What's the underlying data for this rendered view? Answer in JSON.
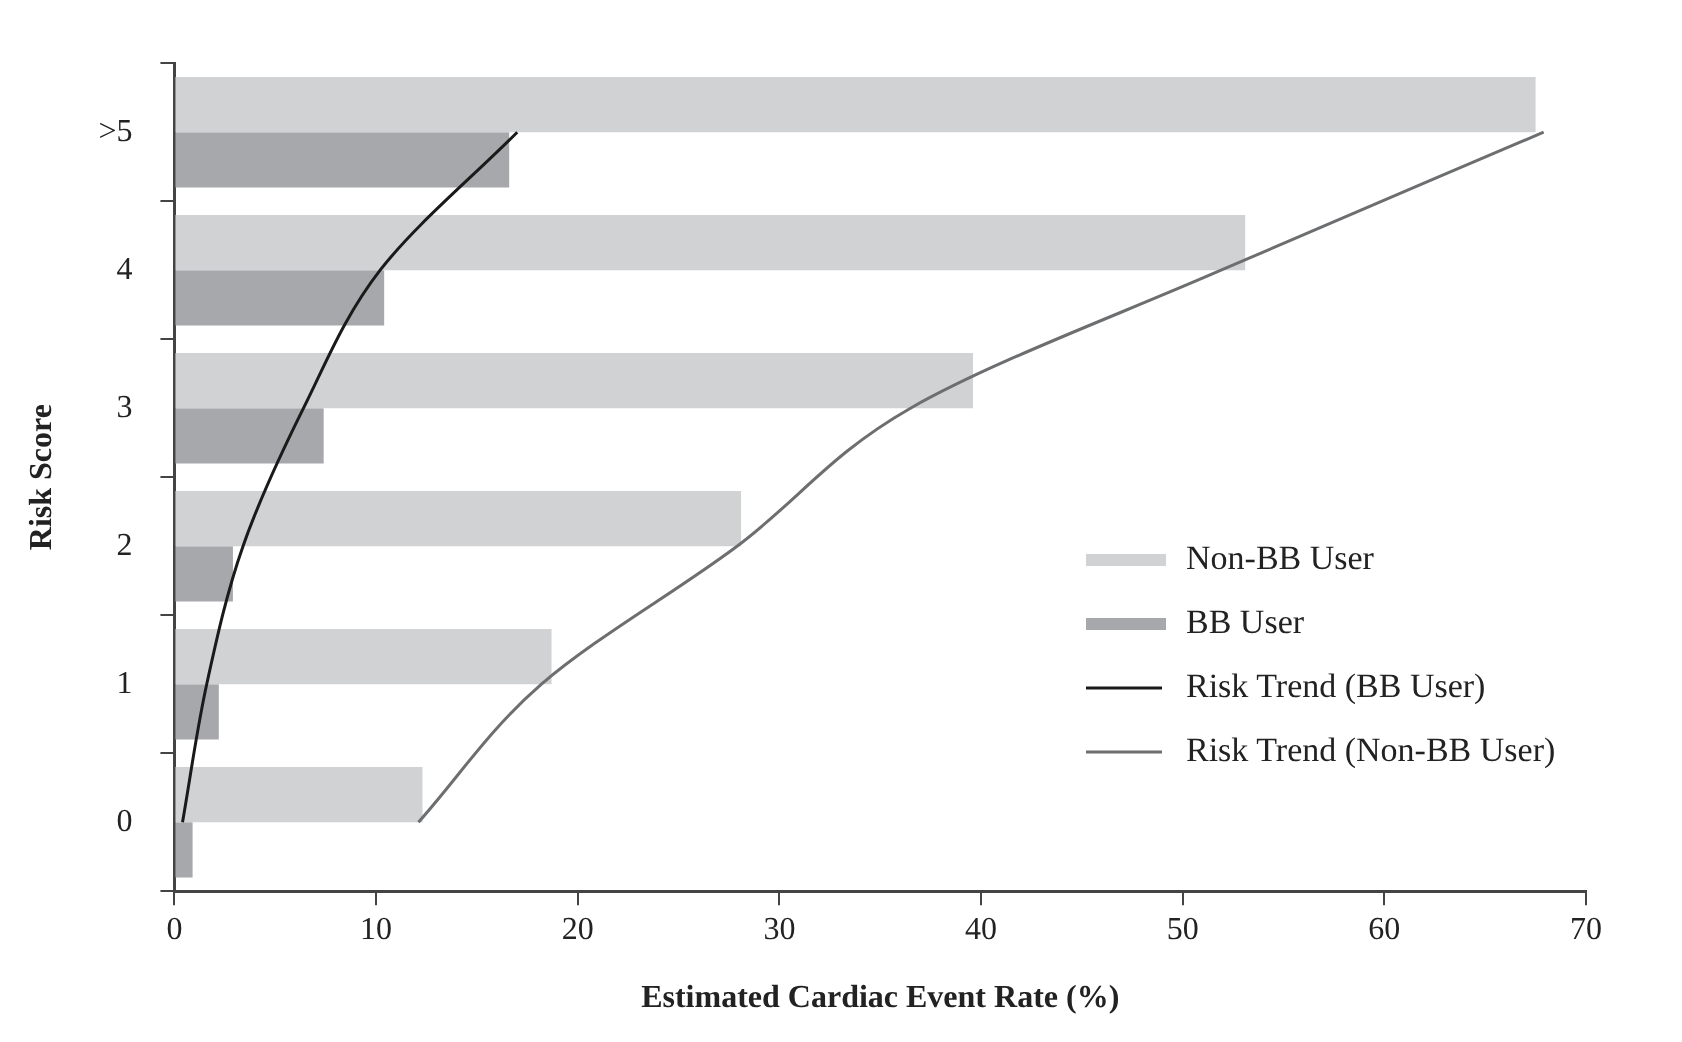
{
  "chart_data": {
    "type": "bar",
    "orientation": "horizontal",
    "xlabel": "Estimated Cardiac Event Rate (%)",
    "ylabel": "Risk Score",
    "categories": [
      ">5",
      "4",
      "3",
      "2",
      "1",
      "0"
    ],
    "series": [
      {
        "name": "Non-BB User",
        "color": "#d1d2d4",
        "values": [
          67.5,
          53.1,
          39.6,
          28.1,
          18.7,
          12.3
        ]
      },
      {
        "name": "BB User",
        "color": "#a7a8ab",
        "values": [
          16.6,
          10.4,
          7.4,
          2.9,
          2.2,
          0.9
        ]
      },
      {
        "name": "Risk Trend (BB User)",
        "type": "line",
        "color": "#1a1a1a",
        "values": [
          17.0,
          10.2,
          6.4,
          3.4,
          1.6,
          0.4
        ]
      },
      {
        "name": "Risk Trend (Non-BB User)",
        "type": "line",
        "color": "#6d6e70",
        "values": [
          67.9,
          51.9,
          36.5,
          27.9,
          18.2,
          12.1
        ]
      }
    ],
    "xlim": [
      0,
      70
    ],
    "xticks": [
      0,
      10,
      20,
      30,
      40,
      50,
      60,
      70
    ],
    "grid": false,
    "legend": "right"
  }
}
